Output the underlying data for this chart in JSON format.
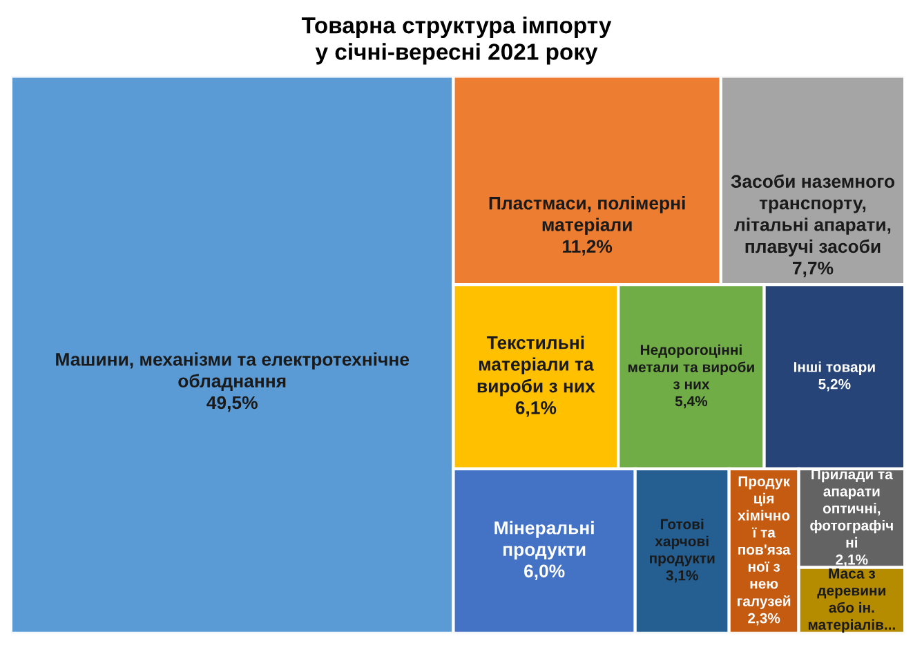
{
  "chart_data": {
    "type": "other",
    "title": "Товарна структура імпорту\nу січні-вересні 2021 року",
    "categories": [
      "Машини, механізми та електротехнічне обладнання",
      "Пластмаси, полімерні матеріали",
      "Засоби наземного транспорту, літальні апарати, плавучі засоби",
      "Текстильні матеріали та вироби з них",
      "Недорогоцінні метали та вироби з них",
      "Інші товари",
      "Мінеральні продукти",
      "Готові харчові продукти",
      "Продукція хімічної та пов'язаної з нею галузей",
      "Прилади та апарати оптичні, фотографічні",
      "Маса з деревини або ін. матеріалів..."
    ],
    "values": [
      49.5,
      11.2,
      7.7,
      6.1,
      5.4,
      5.2,
      6.0,
      3.1,
      2.3,
      2.1,
      null
    ],
    "value_labels": [
      "49,5%",
      "11,2%",
      "7,7%",
      "6,1%",
      "5,4%",
      "5,2%",
      "6,0%",
      "3,1%",
      "2,3%",
      "2,1%",
      null
    ],
    "colors": [
      "#5b9bd5",
      "#ed7d31",
      "#a5a5a5",
      "#ffc000",
      "#70ad47",
      "#264478",
      "#4472c4",
      "#255e91",
      "#c55a11",
      "#636363",
      "#b58b00"
    ]
  }
}
